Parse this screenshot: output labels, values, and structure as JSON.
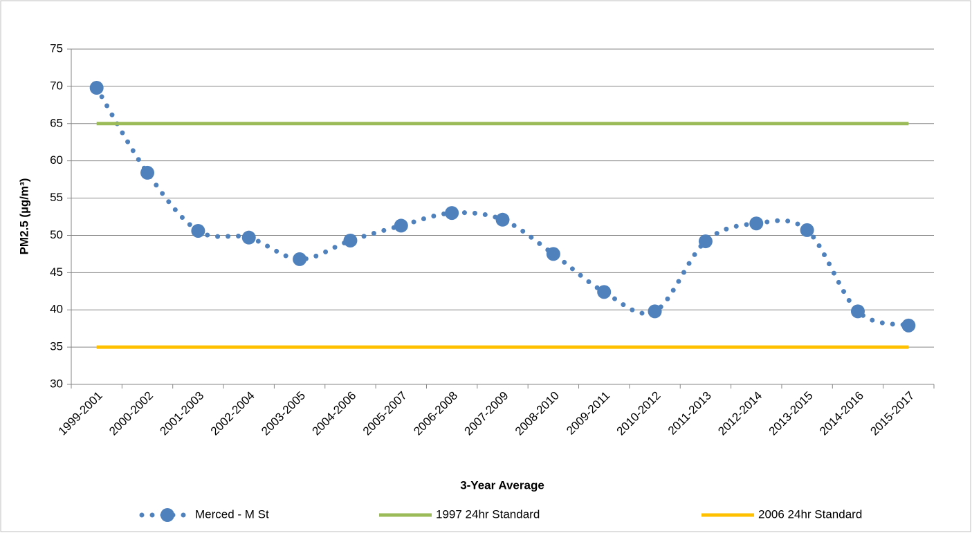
{
  "chart_data": {
    "type": "line",
    "x_label": "3-Year Average",
    "y_label": "PM2.5 (µg/m³)",
    "categories": [
      "1999-2001",
      "2000-2002",
      "2001-2003",
      "2002-2004",
      "2003-2005",
      "2004-2006",
      "2005-2007",
      "2006-2008",
      "2007-2009",
      "2008-2010",
      "2009-2011",
      "2010-2012",
      "2011-2013",
      "2012-2014",
      "2013-2015",
      "2014-2016",
      "2015-2017"
    ],
    "series": [
      {
        "name": "Merced - M St",
        "color": "#4f81bd",
        "style": "dotted-smooth-markers",
        "values": [
          69.8,
          58.4,
          50.6,
          49.7,
          46.8,
          49.3,
          51.3,
          53.0,
          52.1,
          47.5,
          42.4,
          39.8,
          49.2,
          51.6,
          50.7,
          39.8,
          37.9
        ]
      },
      {
        "name": "1997 24hr Standard",
        "color": "#9bbb59",
        "style": "solid",
        "values": [
          65,
          65,
          65,
          65,
          65,
          65,
          65,
          65,
          65,
          65,
          65,
          65,
          65,
          65,
          65,
          65,
          65
        ]
      },
      {
        "name": "2006 24hr Standard",
        "color": "#ffc000",
        "style": "solid",
        "values": [
          35,
          35,
          35,
          35,
          35,
          35,
          35,
          35,
          35,
          35,
          35,
          35,
          35,
          35,
          35,
          35,
          35
        ]
      }
    ],
    "ylim": [
      30,
      75
    ],
    "yticks": [
      30,
      35,
      40,
      45,
      50,
      55,
      60,
      65,
      70,
      75
    ],
    "grid": true,
    "legend": "bottom"
  }
}
